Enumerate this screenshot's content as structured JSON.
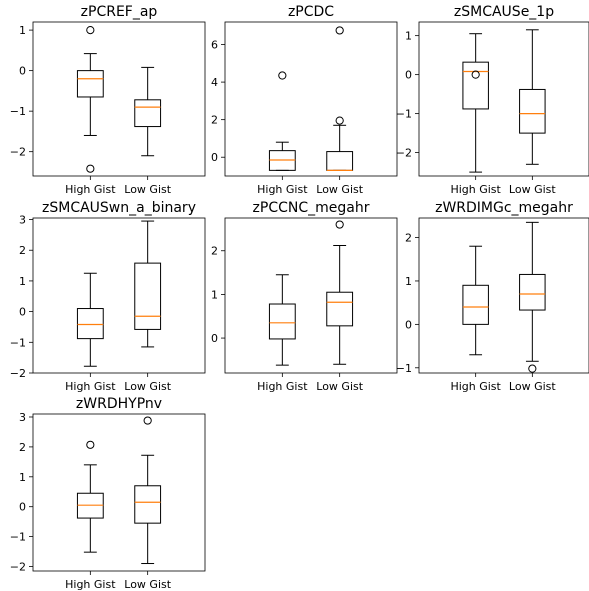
{
  "chart_data": [
    {
      "type": "boxplot",
      "title": "zPCREF_ap",
      "categories": [
        "High Gist",
        "Low Gist"
      ],
      "ylim": [
        -2.6,
        1.2
      ],
      "yticks": [
        -2,
        -1,
        0,
        1
      ],
      "boxes": [
        {
          "category": "High Gist",
          "whislo": -1.6,
          "q1": -0.65,
          "med": -0.2,
          "q3": 0.0,
          "whishi": 0.42,
          "fliers": [
            1.0,
            -2.42
          ]
        },
        {
          "category": "Low Gist",
          "whislo": -2.1,
          "q1": -1.38,
          "med": -0.9,
          "q3": -0.72,
          "whishi": 0.08,
          "fliers": []
        }
      ]
    },
    {
      "type": "boxplot",
      "title": "zPCDC",
      "categories": [
        "High Gist",
        "Low Gist"
      ],
      "ylim": [
        -1.0,
        7.2
      ],
      "yticks": [
        0,
        2,
        4,
        6
      ],
      "boxes": [
        {
          "category": "High Gist",
          "whislo": -0.7,
          "q1": -0.7,
          "med": -0.15,
          "q3": 0.35,
          "whishi": 0.8,
          "fliers": [
            4.35
          ]
        },
        {
          "category": "Low Gist",
          "whislo": -0.7,
          "q1": -0.7,
          "med": -0.7,
          "q3": 0.3,
          "whishi": 1.7,
          "fliers": [
            1.95,
            6.75
          ]
        }
      ]
    },
    {
      "type": "boxplot",
      "title": "zSMCAUSe_1p",
      "categories": [
        "High Gist",
        "Low Gist"
      ],
      "ylim": [
        -2.6,
        1.35
      ],
      "yticks": [
        -2,
        -1,
        0,
        1
      ],
      "boxes": [
        {
          "category": "High Gist",
          "whislo": -2.5,
          "q1": -0.88,
          "med": 0.08,
          "q3": 0.32,
          "whishi": 1.05,
          "fliers": [
            0.0
          ]
        },
        {
          "category": "Low Gist",
          "whislo": -2.3,
          "q1": -1.5,
          "med": -1.0,
          "q3": -0.38,
          "whishi": 1.15,
          "fliers": []
        }
      ]
    },
    {
      "type": "boxplot",
      "title": "zSMCAUSwn_a_binary",
      "categories": [
        "High Gist",
        "Low Gist"
      ],
      "ylim": [
        -2.0,
        3.05
      ],
      "yticks": [
        -2,
        -1,
        0,
        1,
        2,
        3
      ],
      "boxes": [
        {
          "category": "High Gist",
          "whislo": -1.78,
          "q1": -0.88,
          "med": -0.42,
          "q3": 0.1,
          "whishi": 1.25,
          "fliers": []
        },
        {
          "category": "Low Gist",
          "whislo": -1.15,
          "q1": -0.58,
          "med": -0.15,
          "q3": 1.58,
          "whishi": 2.95,
          "fliers": []
        }
      ]
    },
    {
      "type": "boxplot",
      "title": "zPCCNC_megahr",
      "categories": [
        "High Gist",
        "Low Gist"
      ],
      "ylim": [
        -0.8,
        2.75
      ],
      "yticks": [
        0,
        1,
        2
      ],
      "boxes": [
        {
          "category": "High Gist",
          "whislo": -0.62,
          "q1": -0.02,
          "med": 0.35,
          "q3": 0.78,
          "whishi": 1.45,
          "fliers": []
        },
        {
          "category": "Low Gist",
          "whislo": -0.6,
          "q1": 0.28,
          "med": 0.82,
          "q3": 1.05,
          "whishi": 2.12,
          "fliers": [
            2.6
          ]
        }
      ]
    },
    {
      "type": "boxplot",
      "title": "zWRDIMGc_megahr",
      "categories": [
        "High Gist",
        "Low Gist"
      ],
      "ylim": [
        -1.12,
        2.45
      ],
      "yticks": [
        -1,
        0,
        1,
        2
      ],
      "boxes": [
        {
          "category": "High Gist",
          "whislo": -0.7,
          "q1": 0.0,
          "med": 0.4,
          "q3": 0.9,
          "whishi": 1.8,
          "fliers": []
        },
        {
          "category": "Low Gist",
          "whislo": -0.85,
          "q1": 0.33,
          "med": 0.7,
          "q3": 1.15,
          "whishi": 2.35,
          "fliers": [
            -1.02
          ]
        }
      ]
    },
    {
      "type": "boxplot",
      "title": "zWRDHYPnv",
      "categories": [
        "High Gist",
        "Low Gist"
      ],
      "ylim": [
        -2.15,
        3.1
      ],
      "yticks": [
        -2,
        -1,
        0,
        1,
        2,
        3
      ],
      "boxes": [
        {
          "category": "High Gist",
          "whislo": -1.52,
          "q1": -0.38,
          "med": 0.05,
          "q3": 0.45,
          "whishi": 1.4,
          "fliers": [
            2.07
          ]
        },
        {
          "category": "Low Gist",
          "whislo": -1.9,
          "q1": -0.55,
          "med": 0.15,
          "q3": 0.7,
          "whishi": 1.72,
          "fliers": [
            2.88
          ]
        }
      ]
    }
  ],
  "colors": {
    "median": "#ff7f0e",
    "box_stroke": "#000000",
    "background": "#ffffff"
  }
}
